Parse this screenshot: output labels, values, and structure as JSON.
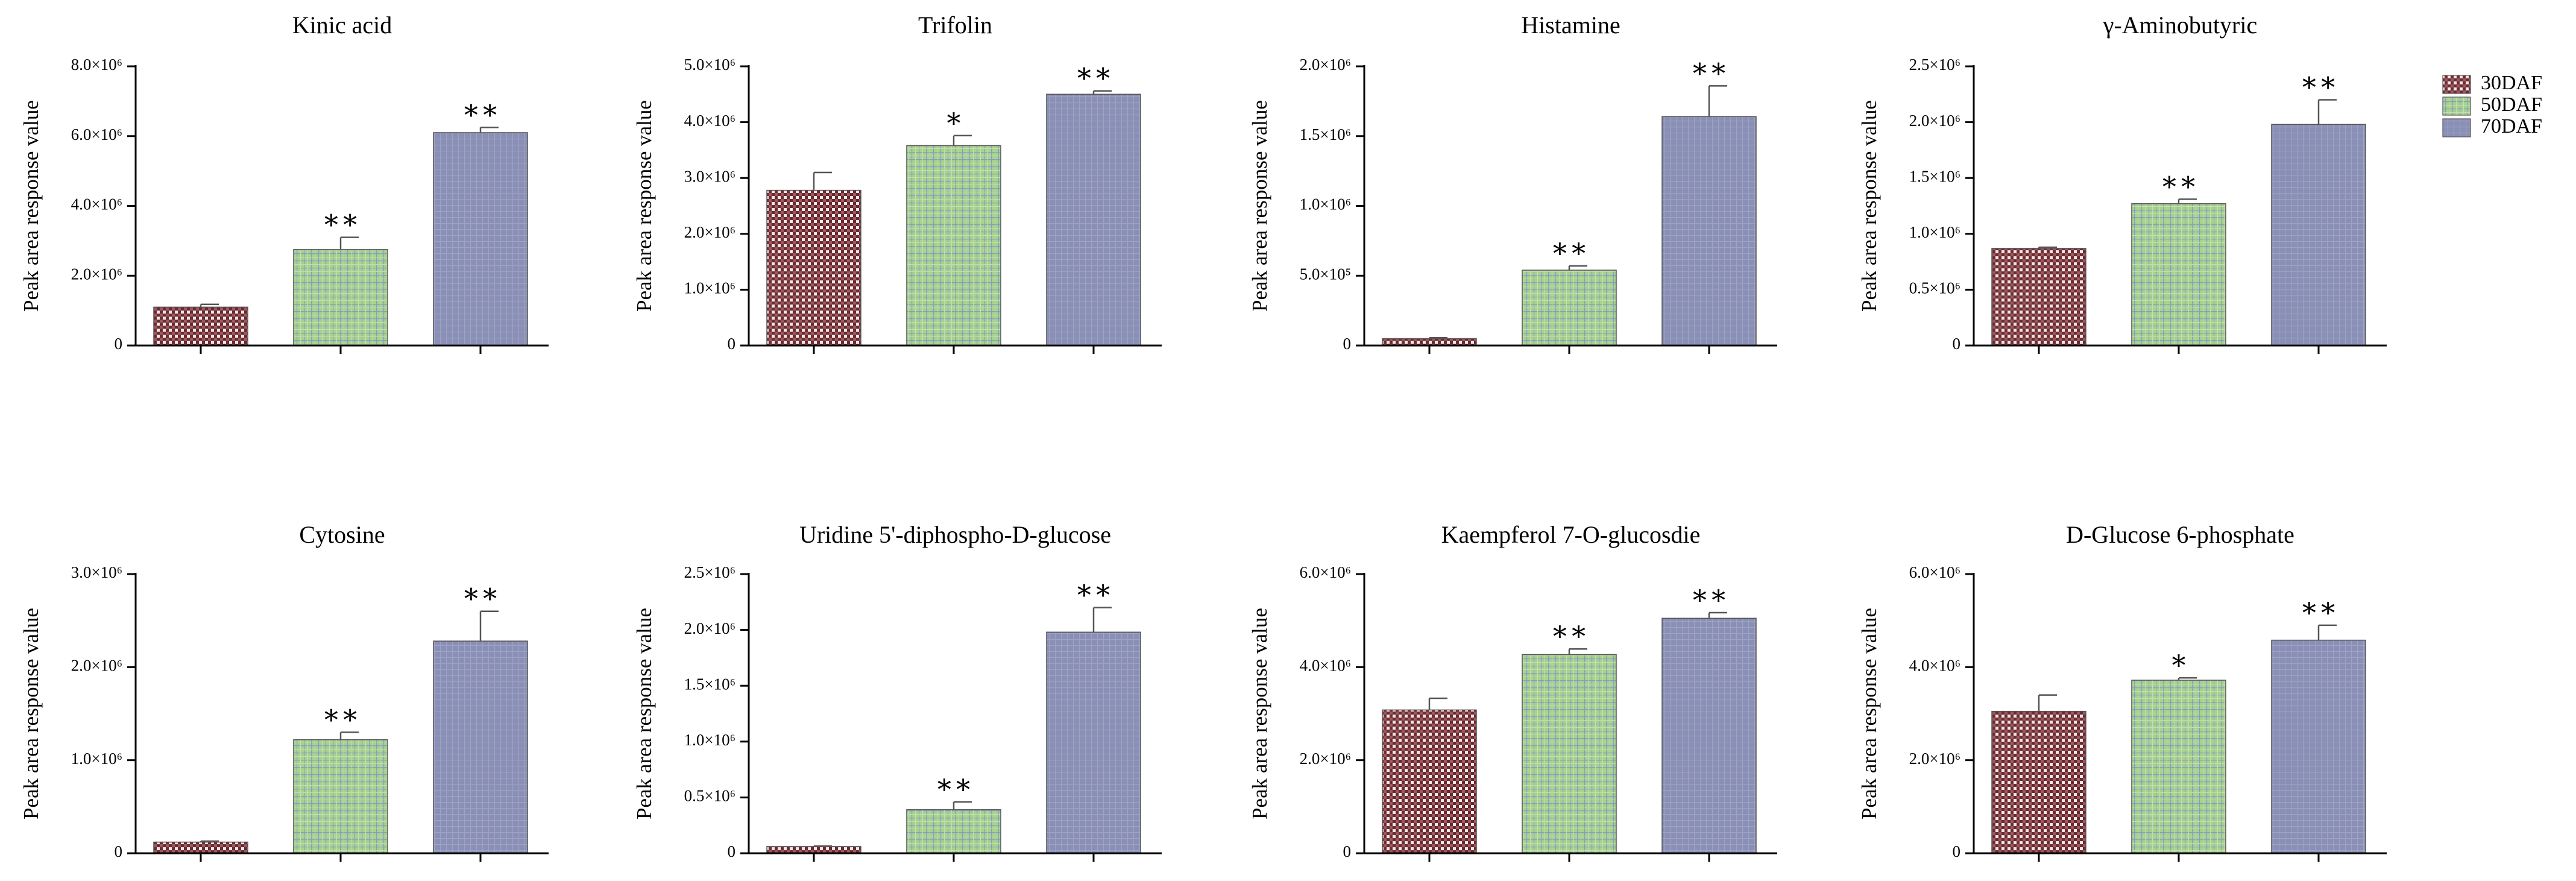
{
  "legend": {
    "position": "right",
    "items": [
      {
        "label": "30DAF",
        "pattern": "pat-30"
      },
      {
        "label": "50DAF",
        "pattern": "pat-50"
      },
      {
        "label": "70DAF",
        "pattern": "pat-70"
      }
    ]
  },
  "colors": {
    "30DAF": "#7a3a3e",
    "50DAF": "#a8d08d",
    "70DAF": "#8a8fb5"
  },
  "chart_data": [
    {
      "type": "bar",
      "title": "Kinic acid",
      "ylabel": "Peak area response value",
      "categories": [
        "30DAF",
        "50DAF",
        "70DAF"
      ],
      "values": [
        1100000.0,
        2750000.0,
        6100000.0
      ],
      "errors": [
        80000.0,
        350000.0,
        150000.0
      ],
      "significance": [
        "",
        "**",
        "**"
      ],
      "ylim": [
        0,
        8000000.0
      ],
      "yticks": [
        0,
        2000000.0,
        4000000.0,
        6000000.0,
        8000000.0
      ],
      "yticklabels": [
        "0",
        "2.0×10⁶",
        "4.0×10⁶",
        "6.0×10⁶",
        "8.0×10⁶"
      ]
    },
    {
      "type": "bar",
      "title": "Trifolin",
      "ylabel": "Peak area response value",
      "categories": [
        "30DAF",
        "50DAF",
        "70DAF"
      ],
      "values": [
        2780000.0,
        3580000.0,
        4500000.0
      ],
      "errors": [
        320000.0,
        180000.0,
        60000.0
      ],
      "significance": [
        "",
        "*",
        "**"
      ],
      "ylim": [
        0,
        5000000.0
      ],
      "yticks": [
        0,
        1000000.0,
        2000000.0,
        3000000.0,
        4000000.0,
        5000000.0
      ],
      "yticklabels": [
        "0",
        "1.0×10⁶",
        "2.0×10⁶",
        "3.0×10⁶",
        "4.0×10⁶",
        "5.0×10⁶"
      ]
    },
    {
      "type": "bar",
      "title": "Histamine",
      "ylabel": "Peak area response value",
      "categories": [
        "30DAF",
        "50DAF",
        "70DAF"
      ],
      "values": [
        50000.0,
        540000.0,
        1640000.0
      ],
      "errors": [
        5000.0,
        30000.0,
        220000.0
      ],
      "significance": [
        "",
        "**",
        "**"
      ],
      "ylim": [
        0,
        2000000.0
      ],
      "yticks": [
        0,
        500000.0,
        1000000.0,
        1500000.0,
        2000000.0
      ],
      "yticklabels": [
        "0",
        "5.0×10⁵",
        "1.0×10⁶",
        "1.5×10⁶",
        "2.0×10⁶"
      ]
    },
    {
      "type": "bar",
      "title": "γ-Aminobutyric",
      "ylabel": "Peak area response value",
      "categories": [
        "30DAF",
        "50DAF",
        "70DAF"
      ],
      "values": [
        870000.0,
        1270000.0,
        1980000.0
      ],
      "errors": [
        10000.0,
        40000.0,
        220000.0
      ],
      "significance": [
        "",
        "**",
        "**"
      ],
      "ylim": [
        0,
        2500000.0
      ],
      "yticks": [
        0,
        500000.0,
        1000000.0,
        1500000.0,
        2000000.0,
        2500000.0
      ],
      "yticklabels": [
        "0",
        "0.5×10⁶",
        "1.0×10⁶",
        "1.5×10⁶",
        "2.0×10⁶",
        "2.5×10⁶"
      ]
    },
    {
      "type": "bar",
      "title": "Cytosine",
      "ylabel": "Peak area response value",
      "categories": [
        "30DAF",
        "50DAF",
        "70DAF"
      ],
      "values": [
        120000.0,
        1220000.0,
        2280000.0
      ],
      "errors": [
        10000.0,
        80000.0,
        320000.0
      ],
      "significance": [
        "",
        "**",
        "**"
      ],
      "ylim": [
        0,
        3000000.0
      ],
      "yticks": [
        0,
        1000000.0,
        2000000.0,
        3000000.0
      ],
      "yticklabels": [
        "0",
        "1.0×10⁶",
        "2.0×10⁶",
        "3.0×10⁶"
      ]
    },
    {
      "type": "bar",
      "title": "Uridine 5'-diphospho-D-glucose",
      "ylabel": "Peak area response value",
      "categories": [
        "30DAF",
        "50DAF",
        "70DAF"
      ],
      "values": [
        60000.0,
        390000.0,
        1980000.0
      ],
      "errors": [
        5000.0,
        70000.0,
        220000.0
      ],
      "significance": [
        "",
        "**",
        "**"
      ],
      "ylim": [
        0,
        2500000.0
      ],
      "yticks": [
        0,
        500000.0,
        1000000.0,
        1500000.0,
        2000000.0,
        2500000.0
      ],
      "yticklabels": [
        "0",
        "0.5×10⁶",
        "1.0×10⁶",
        "1.5×10⁶",
        "2.0×10⁶",
        "2.5×10⁶"
      ]
    },
    {
      "type": "bar",
      "title": "Kaempferol 7-O-glucosdie",
      "ylabel": "Peak area response value",
      "categories": [
        "30DAF",
        "50DAF",
        "70DAF"
      ],
      "values": [
        3080000.0,
        4270000.0,
        5050000.0
      ],
      "errors": [
        250000.0,
        120000.0,
        120000.0
      ],
      "significance": [
        "",
        "**",
        "**"
      ],
      "ylim": [
        0,
        6000000.0
      ],
      "yticks": [
        0,
        2000000.0,
        4000000.0,
        6000000.0
      ],
      "yticklabels": [
        "0",
        "2.0×10⁶",
        "4.0×10⁶",
        "6.0×10⁶"
      ]
    },
    {
      "type": "bar",
      "title": "D-Glucose 6-phosphate",
      "ylabel": "Peak area response value",
      "categories": [
        "30DAF",
        "50DAF",
        "70DAF"
      ],
      "values": [
        3050000.0,
        3720000.0,
        4580000.0
      ],
      "errors": [
        350000.0,
        50000.0,
        320000.0
      ],
      "significance": [
        "",
        "*",
        "**"
      ],
      "ylim": [
        0,
        6000000.0
      ],
      "yticks": [
        0,
        2000000.0,
        4000000.0,
        6000000.0
      ],
      "yticklabels": [
        "0",
        "2.0×10⁶",
        "4.0×10⁶",
        "6.0×10⁶"
      ]
    }
  ]
}
